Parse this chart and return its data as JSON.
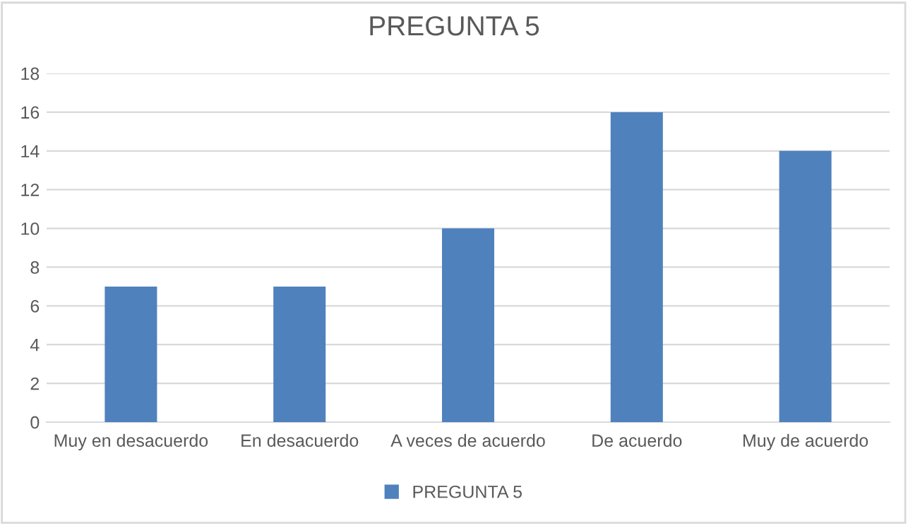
{
  "chart_data": {
    "type": "bar",
    "title": "PREGUNTA 5",
    "categories": [
      "Muy en desacuerdo",
      "En desacuerdo",
      "A veces de acuerdo",
      "De acuerdo",
      "Muy de acuerdo"
    ],
    "series": [
      {
        "name": "PREGUNTA 5",
        "color": "#4f81bd",
        "values": [
          7,
          7,
          10,
          16,
          14
        ]
      }
    ],
    "ylim": [
      0,
      18
    ],
    "yticks": [
      0,
      2,
      4,
      6,
      8,
      10,
      12,
      14,
      16,
      18
    ],
    "grid": "y",
    "legend": "bottom"
  }
}
